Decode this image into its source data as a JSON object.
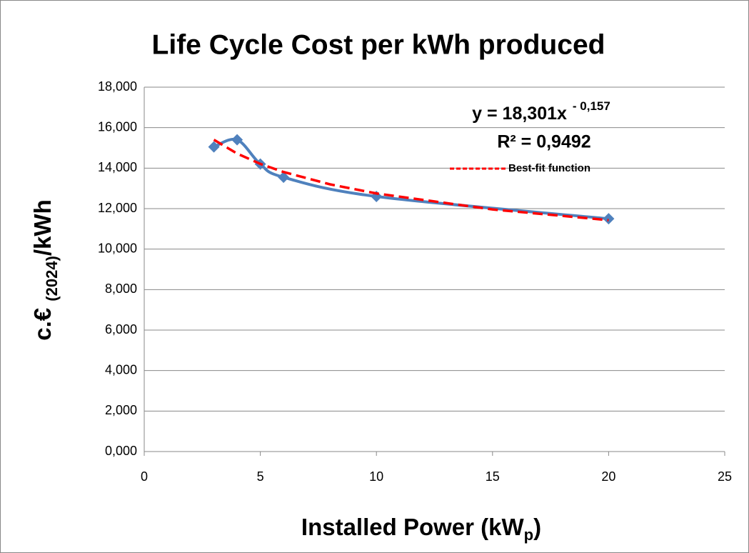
{
  "chart_data": {
    "type": "scatter",
    "title": "Life Cycle Cost  per kWh produced",
    "xlabel": [
      "Installed Power (kW",
      "p",
      ")"
    ],
    "ylabel": [
      "c.€ ",
      "(2024)",
      "/kWh"
    ],
    "annotations": {
      "equation": "y = 18,301x",
      "exponent": "- 0,157",
      "r2": "R² = 0,9492"
    },
    "xlim": [
      0,
      25
    ],
    "xticks": [
      0,
      5,
      10,
      15,
      20,
      25
    ],
    "ylim": [
      0,
      18
    ],
    "yticks": [
      {
        "value": 0,
        "label": "0,000"
      },
      {
        "value": 2,
        "label": "2,000"
      },
      {
        "value": 4,
        "label": "4,000"
      },
      {
        "value": 6,
        "label": "6,000"
      },
      {
        "value": 8,
        "label": "8,000"
      },
      {
        "value": 10,
        "label": "10,000"
      },
      {
        "value": 12,
        "label": "12,000"
      },
      {
        "value": 14,
        "label": "14,000"
      },
      {
        "value": 16,
        "label": "16,000"
      },
      {
        "value": 18,
        "label": "18,000"
      }
    ],
    "grid": true,
    "series": [
      {
        "color": "#4f81bd",
        "style": "smooth",
        "marker": "diamond",
        "x": [
          3,
          4,
          5,
          6,
          10,
          20
        ],
        "values": [
          15.05,
          15.4,
          14.2,
          13.55,
          12.6,
          11.5
        ]
      },
      {
        "name": "Best-fit function",
        "color": "#ff0000",
        "style": "dashed",
        "x": [
          3,
          4,
          5,
          6,
          8,
          10,
          15,
          20
        ],
        "values": [
          15.4,
          14.72,
          14.21,
          13.81,
          13.2,
          12.75,
          11.96,
          11.43
        ]
      }
    ]
  }
}
